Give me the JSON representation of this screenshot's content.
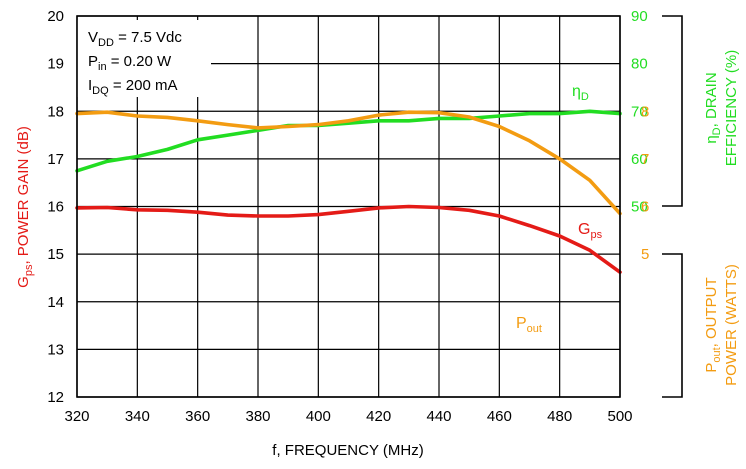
{
  "chart_data": {
    "type": "line",
    "x": {
      "label": "f, FREQUENCY (MHz)",
      "range": [
        320,
        500
      ],
      "ticks": [
        "320",
        "340",
        "360",
        "380",
        "400",
        "420",
        "440",
        "460",
        "480",
        "500"
      ]
    },
    "y_left": {
      "label_main": "G",
      "label_sub": "ps",
      "label_rest": ", POWER GAIN (dB)",
      "range": [
        12,
        20
      ],
      "ticks": [
        "12",
        "13",
        "14",
        "15",
        "16",
        "17",
        "18",
        "19",
        "20"
      ]
    },
    "y_right_efficiency": {
      "label_line1_main": "η",
      "label_line1_sub": "D",
      "label_line1_rest": ", DRAIN",
      "label_line2": "EFFICIENCY (%)",
      "range": [
        50,
        90
      ],
      "ticks": [
        "50",
        "60",
        "70",
        "80",
        "90"
      ]
    },
    "y_right_power": {
      "label_line1_main": "P",
      "label_line1_sub": "out",
      "label_line1_rest": ", OUTPUT",
      "label_line2": "POWER (WATTS)",
      "range": [
        5,
        8
      ],
      "ticks": [
        "5",
        "6",
        "7",
        "8"
      ]
    },
    "conditions": [
      {
        "main": "V",
        "sub": "DD",
        "rest": " = 7.5 Vdc"
      },
      {
        "main": "P",
        "sub": "in",
        "rest": " = 0.20 W"
      },
      {
        "main": "I",
        "sub": "DQ",
        "rest": " = 200 mA"
      }
    ],
    "series": [
      {
        "name_main": "η",
        "name_sub": "D",
        "axis": "y_right_efficiency",
        "color": "#22dd22",
        "x": [
          320,
          330,
          340,
          350,
          360,
          370,
          380,
          390,
          400,
          410,
          420,
          430,
          440,
          450,
          460,
          470,
          480,
          490,
          500
        ],
        "y": [
          57.5,
          59.5,
          60.5,
          62.0,
          64.0,
          65.0,
          66.0,
          67.0,
          67.0,
          67.5,
          68.0,
          68.0,
          68.5,
          68.5,
          69.0,
          69.5,
          69.5,
          70.0,
          69.5
        ]
      },
      {
        "name_main": "G",
        "name_sub": "ps",
        "axis": "y_left",
        "color": "#e41b17",
        "x": [
          320,
          330,
          340,
          350,
          360,
          370,
          380,
          390,
          400,
          410,
          420,
          430,
          440,
          450,
          460,
          470,
          480,
          490,
          500
        ],
        "y": [
          15.97,
          15.98,
          15.93,
          15.92,
          15.88,
          15.82,
          15.8,
          15.8,
          15.83,
          15.9,
          15.97,
          16.0,
          15.98,
          15.92,
          15.8,
          15.6,
          15.38,
          15.08,
          14.62
        ]
      },
      {
        "name_main": "P",
        "name_sub": "out",
        "axis": "y_right_power",
        "color": "#f39c12",
        "x": [
          320,
          330,
          340,
          350,
          360,
          370,
          380,
          390,
          400,
          410,
          420,
          430,
          440,
          450,
          460,
          470,
          480,
          490,
          500
        ],
        "y": [
          7.95,
          7.98,
          7.9,
          7.87,
          7.8,
          7.72,
          7.65,
          7.68,
          7.72,
          7.8,
          7.92,
          7.98,
          7.97,
          7.88,
          7.68,
          7.38,
          7.0,
          6.55,
          5.85
        ]
      }
    ]
  }
}
